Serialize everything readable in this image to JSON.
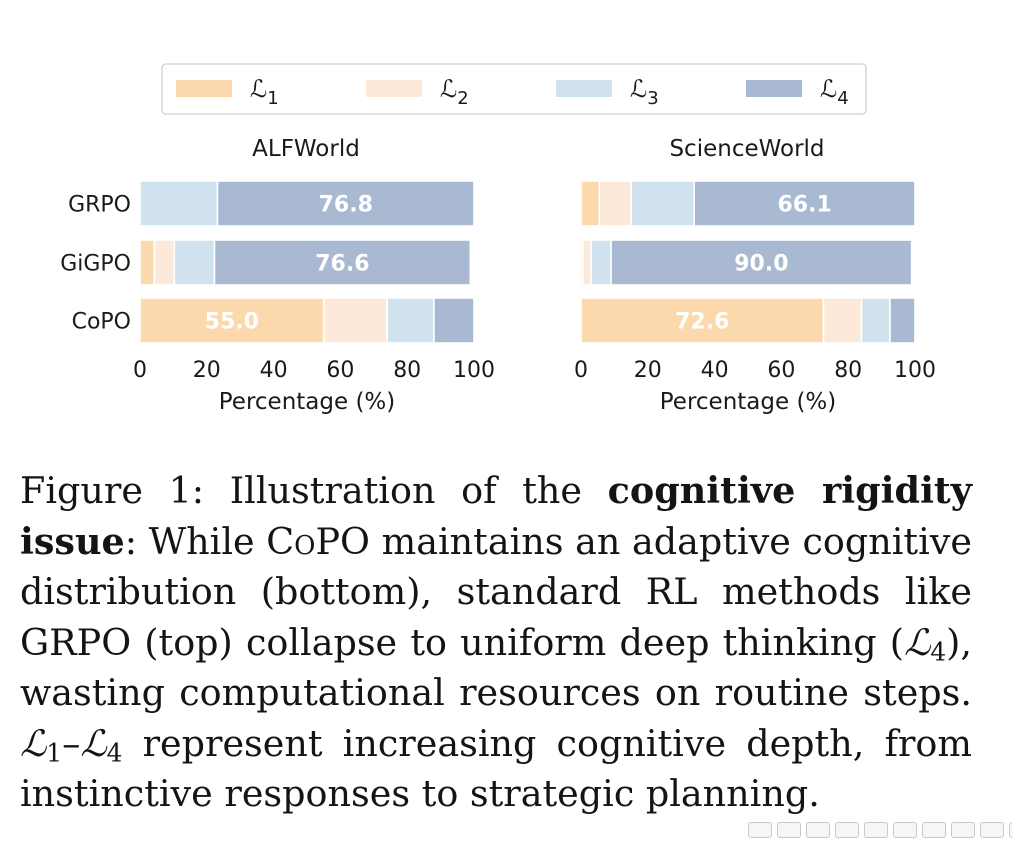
{
  "colors": {
    "L1": "#fbd9ad",
    "L2": "#fce9da",
    "L3": "#cfe2ee",
    "L4": "#a9b9d2"
  },
  "legend": [
    {
      "key": "L1",
      "script": "ℒ",
      "sub": "1"
    },
    {
      "key": "L2",
      "script": "ℒ",
      "sub": "2"
    },
    {
      "key": "L3",
      "script": "ℒ",
      "sub": "3"
    },
    {
      "key": "L4",
      "script": "ℒ",
      "sub": "4"
    }
  ],
  "chart_data": [
    {
      "type": "bar",
      "orientation": "horizontal",
      "stacked": true,
      "title": "ALFWorld",
      "xlabel": "Percentage (%)",
      "xlim": [
        0,
        100
      ],
      "xticks": [
        0,
        20,
        40,
        60,
        80,
        100
      ],
      "categories": [
        "GRPO",
        "GiGPO",
        "CoPO"
      ],
      "series": [
        {
          "name": "L1",
          "values": [
            0,
            4.3,
            55.0
          ]
        },
        {
          "name": "L2",
          "values": [
            0,
            6.0,
            19.0
          ]
        },
        {
          "name": "L3",
          "values": [
            23.2,
            12.0,
            14.0
          ]
        },
        {
          "name": "L4",
          "values": [
            76.8,
            76.6,
            12.0
          ]
        }
      ],
      "data_labels": [
        {
          "category": "GRPO",
          "series": "L4",
          "text": "76.8"
        },
        {
          "category": "GiGPO",
          "series": "L4",
          "text": "76.6"
        },
        {
          "category": "CoPO",
          "series": "L1",
          "text": "55.0"
        }
      ]
    },
    {
      "type": "bar",
      "orientation": "horizontal",
      "stacked": true,
      "title": "ScienceWorld",
      "xlabel": "Percentage (%)",
      "xlim": [
        0,
        100
      ],
      "xticks": [
        0,
        20,
        40,
        60,
        80,
        100
      ],
      "categories": [
        "GRPO",
        "GiGPO",
        "CoPO"
      ],
      "series": [
        {
          "name": "L1",
          "values": [
            5.5,
            0.6,
            72.6
          ]
        },
        {
          "name": "L2",
          "values": [
            9.5,
            2.4,
            11.4
          ]
        },
        {
          "name": "L3",
          "values": [
            18.9,
            6.0,
            8.5
          ]
        },
        {
          "name": "L4",
          "values": [
            66.1,
            90.0,
            7.5
          ]
        }
      ],
      "data_labels": [
        {
          "category": "GRPO",
          "series": "L4",
          "text": "66.1"
        },
        {
          "category": "GiGPO",
          "series": "L4",
          "text": "90.0"
        },
        {
          "category": "CoPO",
          "series": "L1",
          "text": "72.6"
        }
      ]
    }
  ],
  "caption": {
    "label": "Figure 1:",
    "t1": " Illustration of the ",
    "bold": "cognitive rigidity issue",
    "t2": ": While ",
    "method": "CoPO",
    "t3": " maintains an adaptive cognitive distribution (bottom), standard RL methods like GRPO (top) collapse to uniform deep thinking (",
    "m1": "ℒ",
    "m1sub": "4",
    "t4": "), wasting computational resources on routine steps. ",
    "m2": "ℒ",
    "m2sub": "1",
    "dash": "–",
    "m3": "ℒ",
    "m3sub": "4",
    "t5": " represent increasing cognitive depth, from instinctive responses to strategic planning."
  }
}
